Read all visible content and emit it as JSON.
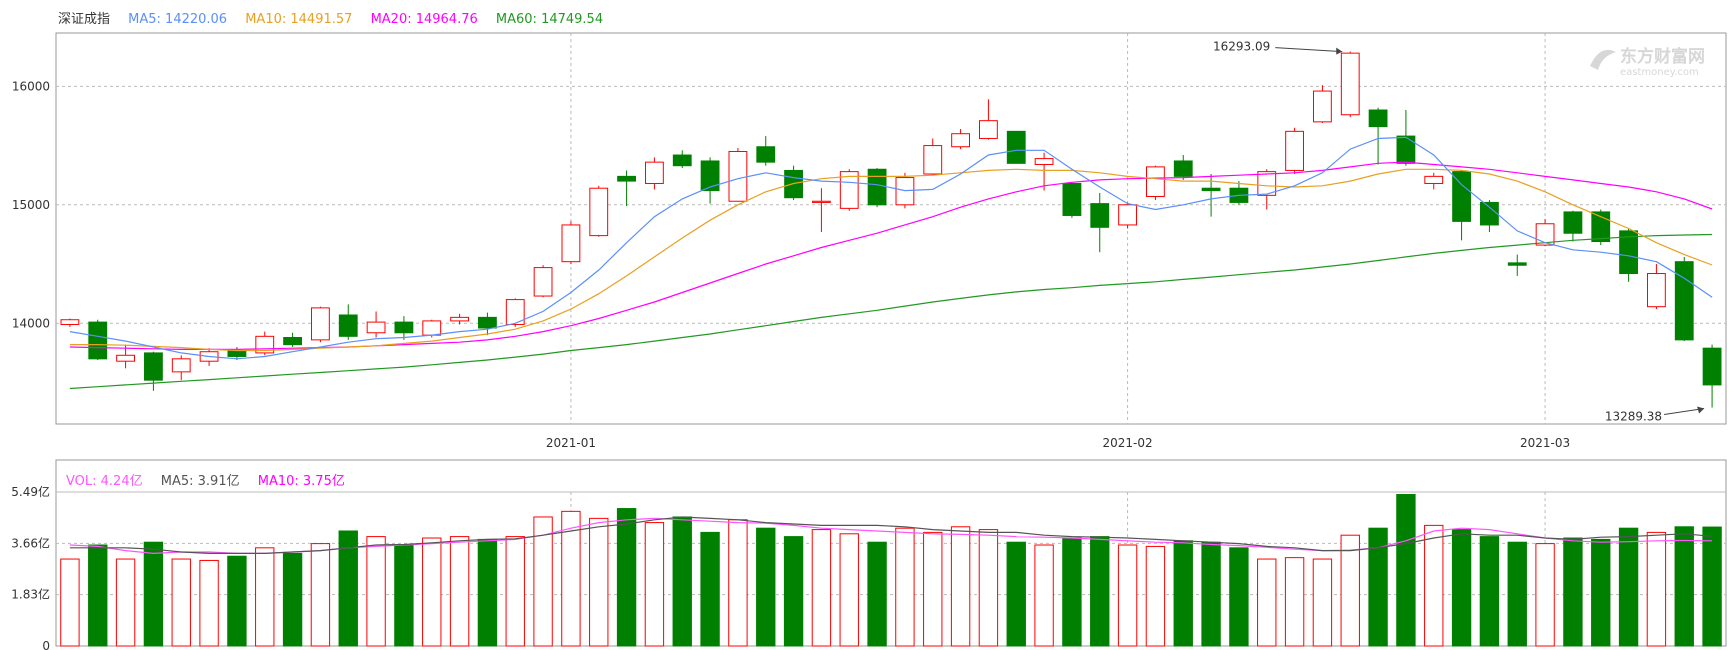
{
  "legend": {
    "name": "深证成指",
    "ma5": "MA5: 14220.06",
    "ma10": "MA10: 14491.57",
    "ma20": "MA20: 14964.76",
    "ma60": "MA60: 14749.54"
  },
  "volume_legend": {
    "vol": "VOL: 4.24亿",
    "ma5": "MA5: 3.91亿",
    "ma10": "MA10: 3.75亿"
  },
  "annotations": {
    "high": "16293.09",
    "low": "13289.38"
  },
  "watermark": {
    "text": "东方财富网",
    "sub": "eastmoney.com"
  },
  "colors": {
    "up": "#ff0000",
    "down": "#008000",
    "ma5": "#5b8ff9",
    "ma10": "#e8a021",
    "ma20": "#ff00ff",
    "ma60": "#229922",
    "vol_ma5": "#555555",
    "vol_ma10": "#ff55ff"
  },
  "chart_data": [
    {
      "type": "candlestick",
      "ylim": [
        13150,
        16450
      ],
      "y_ticks": [
        "14000",
        "15000",
        "16000"
      ],
      "x_ticks": [
        {
          "index": 18,
          "label": "2021-01"
        },
        {
          "index": 38,
          "label": "2021-02"
        },
        {
          "index": 53,
          "label": "2021-03"
        }
      ],
      "grid": true,
      "candles": [
        [
          13990,
          14030,
          13970,
          14040
        ],
        [
          14010,
          13700,
          13690,
          14030
        ],
        [
          13680,
          13730,
          13620,
          13820
        ],
        [
          13750,
          13520,
          13430,
          13760
        ],
        [
          13590,
          13700,
          13520,
          13730
        ],
        [
          13680,
          13760,
          13640,
          13790
        ],
        [
          13770,
          13720,
          13690,
          13800
        ],
        [
          13750,
          13890,
          13730,
          13930
        ],
        [
          13880,
          13820,
          13800,
          13920
        ],
        [
          13860,
          14130,
          13840,
          14140
        ],
        [
          14070,
          13890,
          13860,
          14160
        ],
        [
          13920,
          14010,
          13880,
          14100
        ],
        [
          14010,
          13920,
          13860,
          14060
        ],
        [
          13900,
          14020,
          13880,
          14030
        ],
        [
          14020,
          14050,
          13990,
          14080
        ],
        [
          14050,
          13960,
          13900,
          14090
        ],
        [
          13990,
          14200,
          13970,
          14210
        ],
        [
          14230,
          14470,
          14220,
          14490
        ],
        [
          14520,
          14830,
          14500,
          14860
        ],
        [
          14740,
          15140,
          14730,
          15160
        ],
        [
          15240,
          15200,
          14990,
          15290
        ],
        [
          15180,
          15360,
          15130,
          15400
        ],
        [
          15420,
          15330,
          15310,
          15460
        ],
        [
          15370,
          15120,
          15010,
          15400
        ],
        [
          15030,
          15450,
          15030,
          15480
        ],
        [
          15490,
          15360,
          15330,
          15580
        ],
        [
          15290,
          15060,
          15040,
          15330
        ],
        [
          15020,
          15030,
          14770,
          15140
        ],
        [
          14970,
          15280,
          14950,
          15300
        ],
        [
          15300,
          15000,
          14980,
          15310
        ],
        [
          15000,
          15230,
          14970,
          15270
        ],
        [
          15260,
          15500,
          15250,
          15560
        ],
        [
          15490,
          15600,
          15470,
          15640
        ],
        [
          15560,
          15710,
          15550,
          15890
        ],
        [
          15620,
          15350,
          15350,
          15620
        ],
        [
          15340,
          15390,
          15120,
          15440
        ],
        [
          15180,
          14910,
          14890,
          15190
        ],
        [
          15010,
          14810,
          14600,
          15100
        ],
        [
          14830,
          15000,
          14800,
          15020
        ],
        [
          15070,
          15320,
          15040,
          15330
        ],
        [
          15370,
          15240,
          15210,
          15420
        ],
        [
          15140,
          15120,
          14900,
          15260
        ],
        [
          15140,
          15020,
          15000,
          15200
        ],
        [
          15080,
          15280,
          14960,
          15300
        ],
        [
          15290,
          15620,
          15260,
          15650
        ],
        [
          15700,
          15960,
          15690,
          16010
        ],
        [
          15760,
          16280,
          15740,
          16293.09
        ],
        [
          15800,
          15660,
          15340,
          15820
        ],
        [
          15580,
          15350,
          15330,
          15800
        ],
        [
          15180,
          15240,
          15130,
          15270
        ],
        [
          15280,
          14860,
          14700,
          15290
        ],
        [
          15020,
          14830,
          14770,
          15040
        ],
        [
          14510,
          14490,
          14400,
          14580
        ],
        [
          14660,
          14840,
          14650,
          14880
        ],
        [
          14940,
          14760,
          14690,
          14950
        ],
        [
          14940,
          14690,
          14660,
          14960
        ],
        [
          14780,
          14420,
          14350,
          14800
        ],
        [
          14140,
          14420,
          14120,
          14500
        ],
        [
          14520,
          13860,
          13850,
          14560
        ],
        [
          13790,
          13480,
          13289.38,
          13820
        ]
      ],
      "ma5": [
        13930,
        13890,
        13850,
        13800,
        13750,
        13720,
        13700,
        13720,
        13760,
        13800,
        13840,
        13870,
        13880,
        13900,
        13930,
        13950,
        14000,
        14100,
        14260,
        14450,
        14680,
        14900,
        15050,
        15150,
        15220,
        15270,
        15230,
        15200,
        15190,
        15170,
        15120,
        15130,
        15260,
        15420,
        15460,
        15460,
        15300,
        15150,
        15010,
        14960,
        15000,
        15050,
        15080,
        15090,
        15160,
        15270,
        15470,
        15560,
        15570,
        15420,
        15170,
        14980,
        14780,
        14680,
        14620,
        14600,
        14570,
        14520,
        14380,
        14220.06
      ],
      "ma10": [
        13820,
        13820,
        13815,
        13805,
        13795,
        13780,
        13770,
        13770,
        13780,
        13790,
        13800,
        13810,
        13830,
        13850,
        13880,
        13910,
        13950,
        14020,
        14120,
        14250,
        14400,
        14560,
        14720,
        14870,
        15000,
        15110,
        15180,
        15220,
        15240,
        15240,
        15240,
        15250,
        15270,
        15290,
        15300,
        15290,
        15290,
        15270,
        15240,
        15220,
        15200,
        15200,
        15180,
        15160,
        15150,
        15160,
        15200,
        15260,
        15300,
        15300,
        15290,
        15260,
        15200,
        15110,
        15000,
        14900,
        14800,
        14680,
        14580,
        14491.57
      ],
      "ma20": [
        13800,
        13795,
        13790,
        13785,
        13780,
        13780,
        13780,
        13785,
        13790,
        13795,
        13800,
        13810,
        13820,
        13830,
        13840,
        13860,
        13890,
        13930,
        13980,
        14040,
        14110,
        14180,
        14260,
        14340,
        14420,
        14500,
        14570,
        14640,
        14700,
        14760,
        14830,
        14900,
        14980,
        15050,
        15110,
        15160,
        15190,
        15210,
        15220,
        15225,
        15230,
        15240,
        15250,
        15260,
        15270,
        15290,
        15320,
        15350,
        15360,
        15340,
        15320,
        15300,
        15270,
        15240,
        15210,
        15180,
        15150,
        15110,
        15050,
        14964.76
      ],
      "ma60": [
        13450,
        13465,
        13480,
        13495,
        13510,
        13525,
        13540,
        13555,
        13570,
        13585,
        13600,
        13615,
        13630,
        13650,
        13670,
        13690,
        13715,
        13740,
        13770,
        13795,
        13820,
        13850,
        13880,
        13910,
        13945,
        13980,
        14015,
        14050,
        14080,
        14110,
        14145,
        14180,
        14210,
        14240,
        14265,
        14285,
        14300,
        14320,
        14335,
        14350,
        14370,
        14390,
        14410,
        14430,
        14450,
        14475,
        14500,
        14530,
        14560,
        14590,
        14615,
        14640,
        14660,
        14680,
        14700,
        14715,
        14730,
        14740,
        14745,
        14749.54
      ]
    },
    {
      "type": "bar",
      "unit": "亿",
      "ylim": [
        0,
        5.49
      ],
      "y_ticks": [
        "0",
        "1.83亿",
        "3.66亿",
        "5.49亿"
      ],
      "volumes": [
        3.1,
        3.6,
        3.1,
        3.7,
        3.1,
        3.05,
        3.2,
        3.5,
        3.3,
        3.65,
        4.1,
        3.9,
        3.6,
        3.85,
        3.9,
        3.8,
        3.9,
        4.6,
        4.8,
        4.55,
        4.9,
        4.4,
        4.6,
        4.05,
        4.5,
        4.2,
        3.9,
        4.15,
        4.0,
        3.7,
        4.2,
        4.05,
        4.25,
        4.15,
        3.7,
        3.6,
        3.85,
        3.9,
        3.6,
        3.55,
        3.75,
        3.7,
        3.5,
        3.1,
        3.15,
        3.1,
        3.95,
        4.2,
        5.4,
        4.3,
        4.15,
        3.9,
        3.7,
        3.65,
        3.85,
        3.8,
        4.2,
        4.05,
        4.25,
        4.24
      ],
      "vol_ma5": [
        3.5,
        3.5,
        3.5,
        3.45,
        3.35,
        3.3,
        3.3,
        3.3,
        3.35,
        3.4,
        3.5,
        3.6,
        3.62,
        3.68,
        3.75,
        3.8,
        3.82,
        3.95,
        4.1,
        4.25,
        4.35,
        4.5,
        4.6,
        4.55,
        4.5,
        4.4,
        4.35,
        4.3,
        4.3,
        4.3,
        4.25,
        4.15,
        4.1,
        4.05,
        4.05,
        3.95,
        3.9,
        3.88,
        3.85,
        3.8,
        3.75,
        3.7,
        3.65,
        3.55,
        3.5,
        3.4,
        3.4,
        3.5,
        3.65,
        3.85,
        4.0,
        3.95,
        3.95,
        3.85,
        3.8,
        3.88,
        3.9,
        3.95,
        4.0,
        3.91
      ],
      "vol_ma10": [
        3.6,
        3.55,
        3.4,
        3.3,
        3.35,
        3.35,
        3.3,
        3.3,
        3.35,
        3.4,
        3.5,
        3.55,
        3.6,
        3.65,
        3.7,
        3.75,
        3.8,
        3.95,
        4.2,
        4.4,
        4.5,
        4.55,
        4.5,
        4.45,
        4.4,
        4.38,
        4.3,
        4.2,
        4.15,
        4.1,
        4.05,
        4.0,
        3.98,
        3.95,
        3.9,
        3.88,
        3.85,
        3.8,
        3.75,
        3.7,
        3.68,
        3.62,
        3.58,
        3.52,
        3.45,
        3.4,
        3.42,
        3.5,
        3.75,
        4.1,
        4.2,
        4.15,
        4.0,
        3.85,
        3.75,
        3.7,
        3.72,
        3.75,
        3.76,
        3.75
      ]
    }
  ]
}
